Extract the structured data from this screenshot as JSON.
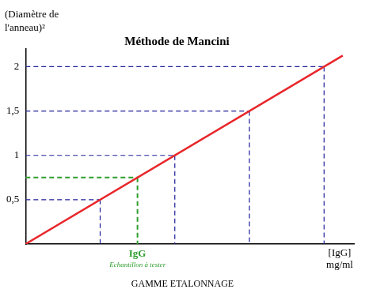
{
  "chart_data": {
    "type": "line",
    "title": "Méthode de Mancini",
    "y_label": [
      "(Diamètre de",
      "l'anneau)²"
    ],
    "x_label": [
      "[IgG]",
      "mg/ml"
    ],
    "caption": "GAMME ETALONNAGE",
    "xlim": [
      0,
      4.4
    ],
    "ylim": [
      0,
      2.2
    ],
    "yticks": [
      {
        "value": 0.5,
        "label": "0,5"
      },
      1,
      {
        "value": 1.5,
        "label": "1,5"
      },
      2
    ],
    "tick_labels": "y",
    "grid": false,
    "series": [
      {
        "type": "line",
        "color": "#e8262a",
        "x": [
          0,
          4.25
        ],
        "values": [
          0,
          2.125
        ]
      },
      {
        "type": "guides",
        "color": "#1f1f9a",
        "line_style": "dashed",
        "x": [
          1,
          2,
          3,
          4
        ],
        "values": [
          0.5,
          1,
          1.5,
          2
        ]
      },
      {
        "type": "guides",
        "color": "#2e9e2e",
        "line_style": "dashed",
        "x": [
          1.5
        ],
        "values": [
          0.75
        ]
      }
    ],
    "annotations": [
      {
        "text": "IgG",
        "x": 1.5,
        "color": "#2e9e2e"
      },
      {
        "text": "Echantillon à tester",
        "x": 1.5,
        "color": "#2e9e2e"
      }
    ]
  }
}
